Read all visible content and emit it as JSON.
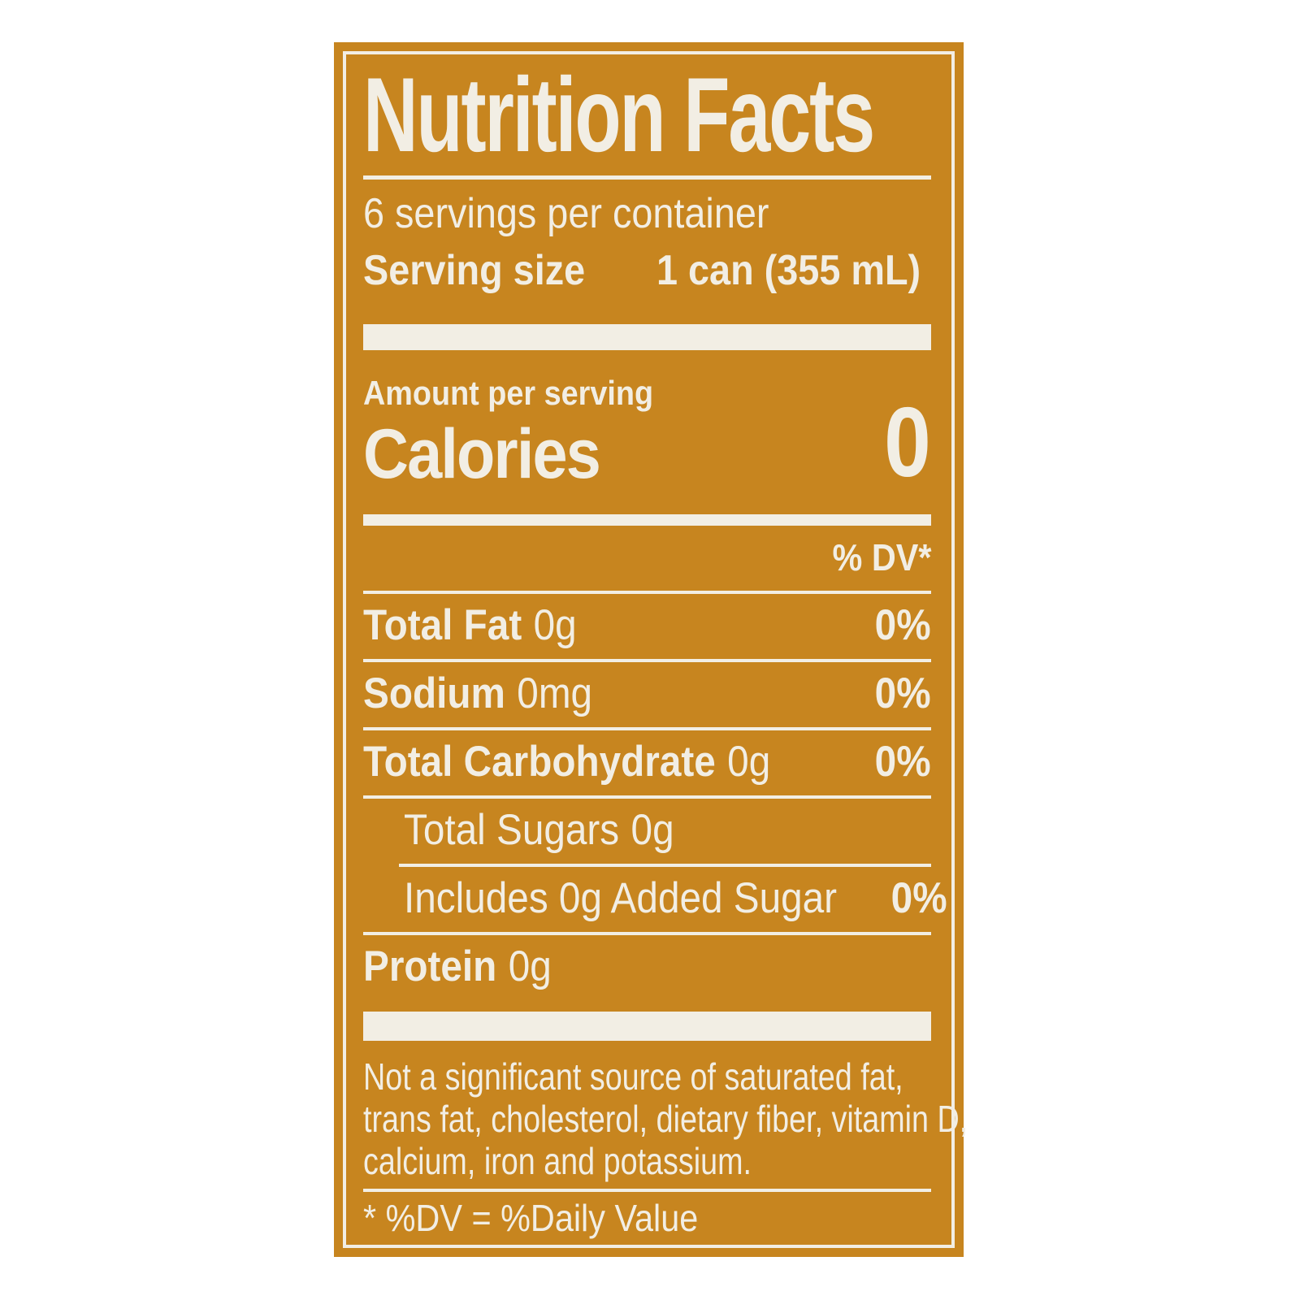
{
  "page": {
    "background": "#FFFFFF"
  },
  "label": {
    "colors": {
      "panel_bg": "#C7851F",
      "text": "#F2EEE4"
    },
    "title": "Nutrition Facts",
    "servings_per_container": "6 servings per container",
    "serving_size": {
      "label": "Serving size",
      "value": "1 can (355 mL)"
    },
    "amount_per_serving": "Amount per serving",
    "calories": {
      "label": "Calories",
      "value": "0"
    },
    "dv_header": "% DV*",
    "rows": [
      {
        "name": "Total Fat",
        "amount": "0g",
        "dv": "0%"
      },
      {
        "name": "Sodium",
        "amount": "0mg",
        "dv": "0%"
      },
      {
        "name": "Total Carbohydrate",
        "amount": "0g",
        "dv": "0%"
      },
      {
        "name": "Total Sugars",
        "amount": "0g"
      },
      {
        "name": "Includes 0g Added Sugar",
        "dv": "0%"
      },
      {
        "name": "Protein",
        "amount": "0g"
      }
    ],
    "footnote_lines": [
      "Not a significant source of saturated fat,",
      "trans fat, cholesterol, dietary fiber, vitamin D,",
      "calcium, iron and potassium."
    ],
    "dv_note": "* %DV = %Daily Value"
  }
}
